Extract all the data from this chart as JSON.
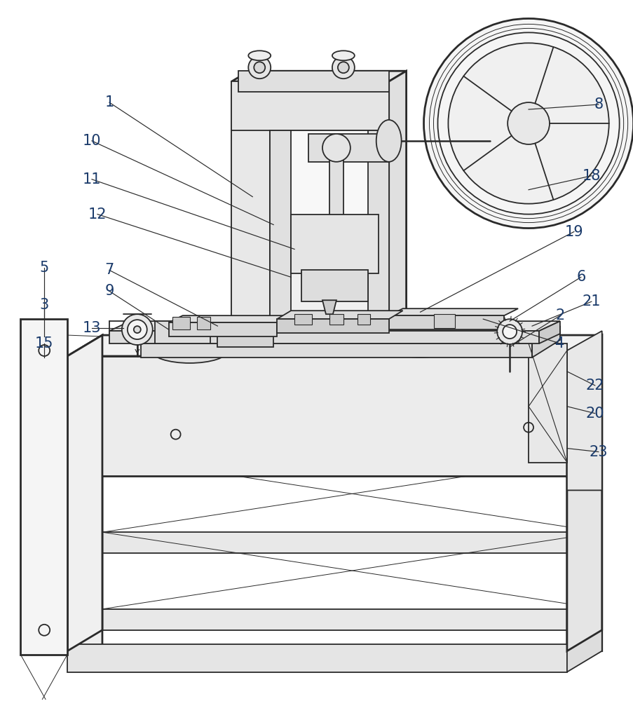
{
  "background_color": "#ffffff",
  "line_color": "#2a2a2a",
  "label_color": "#1a3a6a",
  "lw": 1.3,
  "tlw": 2.0,
  "figsize": [
    9.04,
    10.0
  ],
  "dpi": 100,
  "label_fontsize": 15
}
